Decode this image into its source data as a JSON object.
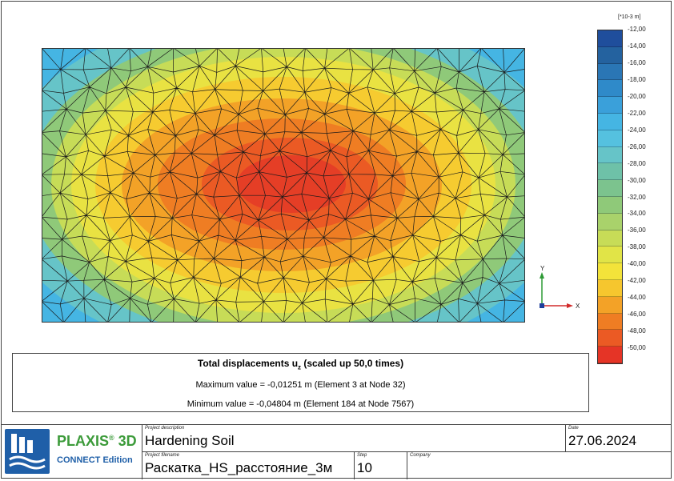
{
  "legend": {
    "unit": "[*10-3 m]",
    "labels": [
      "-12,00",
      "-14,00",
      "-16,00",
      "-18,00",
      "-20,00",
      "-22,00",
      "-24,00",
      "-26,00",
      "-28,00",
      "-30,00",
      "-32,00",
      "-34,00",
      "-36,00",
      "-38,00",
      "-40,00",
      "-42,00",
      "-44,00",
      "-46,00",
      "-48,00",
      "-50,00"
    ],
    "colors": [
      "#1f4e9c",
      "#24629f",
      "#2a76b5",
      "#2f8ac9",
      "#3aa0da",
      "#45b5e3",
      "#55c1df",
      "#66c4c8",
      "#6ec1a8",
      "#7cc38e",
      "#8fc979",
      "#a9d26b",
      "#c7dc57",
      "#e1e447",
      "#f3e33a",
      "#f6c62e",
      "#f3a227",
      "#ef7d23",
      "#eb5a24",
      "#e53426"
    ]
  },
  "axes": {
    "y_label": "Y",
    "x_label": "X"
  },
  "info": {
    "title_prefix": "Total displacements u",
    "title_sub": "z",
    "title_suffix": " (scaled up 50,0 times)",
    "max_line": "Maximum value = -0,01251 m (Element 3 at Node 32)",
    "min_line": "Minimum value = -0,04804 m (Element 184 at Node 7567)"
  },
  "title_block": {
    "logo_name": "PLAXIS",
    "logo_sup": "®",
    "logo_3d": " 3D",
    "logo_edition": "CONNECT Edition",
    "project_description_caption": "Project description",
    "project_description": "Hardening Soil",
    "date_caption": "Date",
    "date": "27.06.2024",
    "project_filename_caption": "Project filename",
    "project_filename": "Раскатка_HS_расстояние_3м",
    "step_caption": "Step",
    "step": "10",
    "company_caption": "Company",
    "company": ""
  }
}
